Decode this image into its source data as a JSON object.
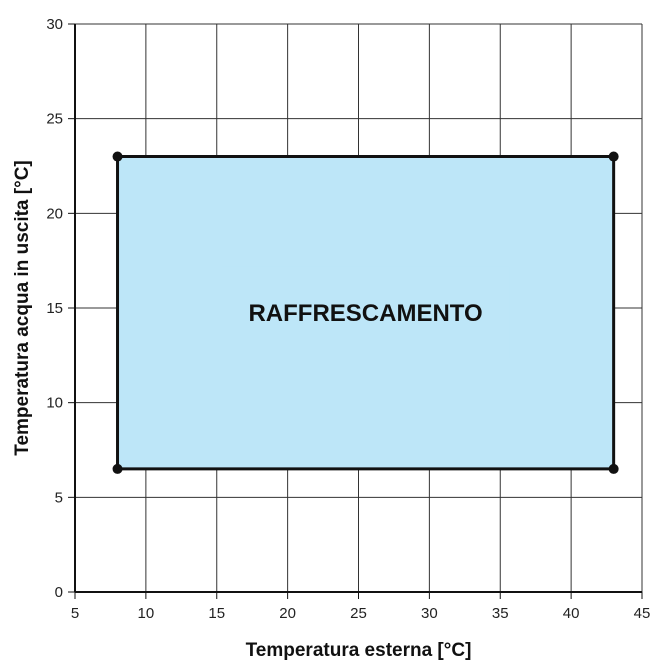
{
  "chart_data": {
    "type": "area",
    "title": "",
    "xlabel": "Temperatura esterna [°C]",
    "ylabel": "Temperatura acqua in uscita [°C]",
    "xlim": [
      5,
      45
    ],
    "ylim": [
      0,
      30
    ],
    "xticks": [
      5,
      10,
      15,
      20,
      25,
      30,
      35,
      40,
      45
    ],
    "yticks": [
      0,
      5,
      10,
      15,
      20,
      25,
      30
    ],
    "grid": true,
    "series": [
      {
        "name": "RAFFRESCAMENTO",
        "fill_color": "#bde6f8",
        "line_color": "#111111",
        "points": [
          {
            "x": 8,
            "y": 6.5
          },
          {
            "x": 43,
            "y": 6.5
          },
          {
            "x": 43,
            "y": 23
          },
          {
            "x": 8,
            "y": 23
          }
        ]
      }
    ]
  }
}
